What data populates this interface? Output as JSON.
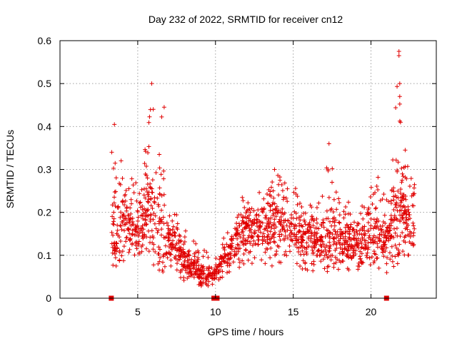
{
  "chart_data": {
    "type": "scatter",
    "title": "Day 232 of 2022, SRMTID for receiver cn12",
    "xlabel": "GPS time / hours",
    "ylabel": "SRMTID / TECUs",
    "xlim": [
      0,
      24.2
    ],
    "ylim": [
      0,
      0.6
    ],
    "x_ticks": [
      0,
      5,
      10,
      15,
      20
    ],
    "x_tick_labels": [
      "0",
      "5",
      "10",
      "15",
      "20"
    ],
    "y_ticks": [
      0,
      0.1,
      0.2,
      0.3,
      0.4,
      0.5,
      0.6
    ],
    "y_tick_labels": [
      "0",
      "0.1",
      "0.2",
      "0.3",
      "0.4",
      "0.5",
      "0.6"
    ],
    "grid": true,
    "marker": "+",
    "series_color": "#e00000",
    "envelope_hours": [
      3.3,
      3.6,
      4.0,
      4.4,
      4.8,
      5.2,
      5.6,
      5.9,
      6.2,
      6.6,
      6.9,
      7.2,
      7.6,
      8.0,
      8.5,
      9.0,
      9.5,
      9.9,
      10.3,
      10.8,
      11.3,
      11.8,
      12.3,
      12.8,
      13.3,
      13.8,
      14.3,
      14.8,
      15.3,
      15.8,
      16.3,
      16.8,
      17.3,
      17.8,
      18.3,
      18.8,
      19.3,
      19.8,
      20.3,
      20.8,
      21.3,
      21.7,
      22.1,
      22.5,
      22.8
    ],
    "envelope_low": [
      0.08,
      0.07,
      0.08,
      0.1,
      0.1,
      0.09,
      0.08,
      0.08,
      0.07,
      0.06,
      0.08,
      0.07,
      0.05,
      0.04,
      0.03,
      0.03,
      0.02,
      0.02,
      0.04,
      0.05,
      0.06,
      0.07,
      0.08,
      0.07,
      0.08,
      0.07,
      0.08,
      0.07,
      0.06,
      0.06,
      0.06,
      0.07,
      0.06,
      0.06,
      0.06,
      0.07,
      0.06,
      0.08,
      0.06,
      0.05,
      0.07,
      0.08,
      0.1,
      0.09,
      0.09
    ],
    "envelope_high": [
      0.4,
      0.3,
      0.34,
      0.29,
      0.27,
      0.31,
      0.37,
      0.5,
      0.33,
      0.44,
      0.28,
      0.21,
      0.19,
      0.16,
      0.14,
      0.12,
      0.12,
      0.08,
      0.13,
      0.16,
      0.19,
      0.25,
      0.22,
      0.25,
      0.26,
      0.3,
      0.28,
      0.25,
      0.26,
      0.24,
      0.23,
      0.22,
      0.36,
      0.25,
      0.22,
      0.23,
      0.2,
      0.26,
      0.3,
      0.29,
      0.32,
      0.57,
      0.34,
      0.3,
      0.28
    ],
    "envelope_center": [
      0.17,
      0.14,
      0.18,
      0.18,
      0.16,
      0.17,
      0.2,
      0.2,
      0.15,
      0.17,
      0.15,
      0.13,
      0.11,
      0.09,
      0.07,
      0.06,
      0.05,
      0.05,
      0.08,
      0.1,
      0.13,
      0.15,
      0.16,
      0.16,
      0.17,
      0.19,
      0.17,
      0.16,
      0.15,
      0.15,
      0.14,
      0.13,
      0.14,
      0.14,
      0.13,
      0.13,
      0.12,
      0.16,
      0.16,
      0.14,
      0.17,
      0.2,
      0.21,
      0.18,
      0.18
    ],
    "zero_values": [
      {
        "x": 3.3,
        "y": 0
      },
      {
        "x": 9.9,
        "y": 0
      },
      {
        "x": 10.0,
        "y": 0
      },
      {
        "x": 10.1,
        "y": 0
      },
      {
        "x": 21.0,
        "y": 0
      }
    ],
    "notable_points": [
      {
        "x": 3.5,
        "y": 0.405
      },
      {
        "x": 5.9,
        "y": 0.5
      },
      {
        "x": 6.0,
        "y": 0.44
      },
      {
        "x": 6.7,
        "y": 0.445
      },
      {
        "x": 13.8,
        "y": 0.3
      },
      {
        "x": 17.3,
        "y": 0.36
      },
      {
        "x": 21.8,
        "y": 0.575
      },
      {
        "x": 21.8,
        "y": 0.565
      },
      {
        "x": 21.85,
        "y": 0.5
      },
      {
        "x": 21.85,
        "y": 0.47
      },
      {
        "x": 21.9,
        "y": 0.41
      },
      {
        "x": 22.2,
        "y": 0.345
      }
    ],
    "n_points": 1700
  }
}
